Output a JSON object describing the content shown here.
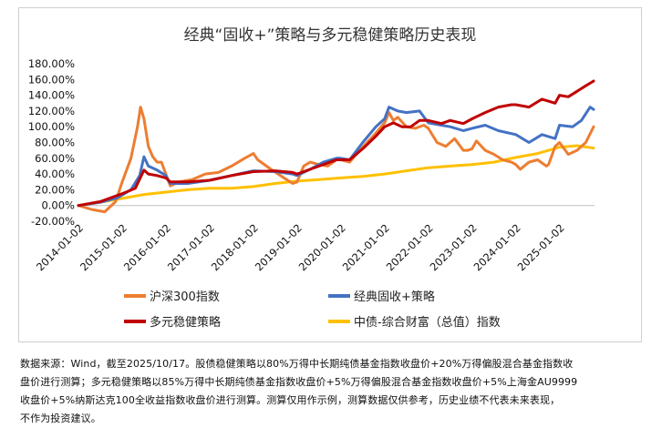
{
  "chart_data": {
    "type": "line",
    "title": "经典“固收+”策略与多元稳健策略历史表现",
    "y_ticks": [
      "180.00%",
      "160.00%",
      "140.00%",
      "120.00%",
      "100.00%",
      "80.00%",
      "60.00%",
      "40.00%",
      "20.00%",
      "0.00%",
      "-20.00%"
    ],
    "ylim": [
      -20,
      180
    ],
    "x_ticks": [
      "2014-01-02",
      "2015-01-02",
      "2016-01-02",
      "2017-01-02",
      "2018-01-02",
      "2019-01-02",
      "2020-01-02",
      "2021-01-02",
      "2022-01-02",
      "2023-01-02",
      "2024-01-02",
      "2025-01-02"
    ],
    "xlim": [
      2014.0,
      2025.8
    ],
    "legend": "bottom",
    "series": [
      {
        "name": "沪深300指数",
        "color": "#ED7D31",
        "x": [
          2014.0,
          2014.3,
          2014.6,
          2014.85,
          2015.0,
          2015.2,
          2015.35,
          2015.42,
          2015.5,
          2015.6,
          2015.7,
          2015.8,
          2015.9,
          2016.0,
          2016.1,
          2016.3,
          2016.6,
          2016.9,
          2017.2,
          2017.5,
          2017.8,
          2018.0,
          2018.1,
          2018.4,
          2018.7,
          2018.9,
          2019.0,
          2019.15,
          2019.3,
          2019.5,
          2019.7,
          2019.9,
          2020.0,
          2020.2,
          2020.4,
          2020.6,
          2020.8,
          2021.0,
          2021.1,
          2021.2,
          2021.3,
          2021.5,
          2021.7,
          2021.9,
          2022.0,
          2022.2,
          2022.4,
          2022.6,
          2022.8,
          2022.9,
          2023.0,
          2023.1,
          2023.3,
          2023.5,
          2023.7,
          2023.9,
          2024.0,
          2024.1,
          2024.3,
          2024.5,
          2024.7,
          2024.75,
          2024.9,
          2025.0,
          2025.2,
          2025.4,
          2025.6,
          2025.78
        ],
        "values": [
          0,
          -5,
          -8,
          5,
          30,
          60,
          100,
          125,
          110,
          75,
          62,
          55,
          55,
          40,
          25,
          30,
          33,
          40,
          42,
          50,
          60,
          66,
          58,
          46,
          35,
          28,
          30,
          50,
          55,
          52,
          50,
          58,
          58,
          55,
          68,
          80,
          92,
          105,
          118,
          108,
          112,
          100,
          98,
          102,
          98,
          80,
          75,
          85,
          70,
          70,
          72,
          82,
          70,
          65,
          58,
          55,
          52,
          46,
          55,
          58,
          50,
          52,
          75,
          80,
          65,
          70,
          80,
          100
        ]
      },
      {
        "name": "经典固收+策略",
        "color": "#4472C4",
        "x": [
          2014.0,
          2014.5,
          2014.9,
          2015.2,
          2015.4,
          2015.5,
          2015.6,
          2015.8,
          2016.0,
          2016.1,
          2016.5,
          2017.0,
          2017.5,
          2018.0,
          2018.5,
          2018.9,
          2019.0,
          2019.3,
          2019.6,
          2019.9,
          2020.0,
          2020.2,
          2020.5,
          2020.8,
          2021.0,
          2021.1,
          2021.3,
          2021.5,
          2021.8,
          2022.0,
          2022.3,
          2022.5,
          2022.8,
          2023.0,
          2023.3,
          2023.6,
          2024.0,
          2024.3,
          2024.6,
          2024.9,
          2025.0,
          2025.3,
          2025.5,
          2025.7,
          2025.78
        ],
        "values": [
          0,
          4,
          10,
          20,
          38,
          62,
          50,
          45,
          38,
          28,
          28,
          32,
          38,
          44,
          43,
          40,
          38,
          46,
          55,
          60,
          60,
          58,
          80,
          100,
          110,
          125,
          120,
          118,
          120,
          105,
          102,
          100,
          95,
          98,
          102,
          95,
          90,
          80,
          90,
          85,
          102,
          100,
          108,
          125,
          122
        ]
      },
      {
        "name": "多元稳健策略",
        "color": "#C00000",
        "x": [
          2014.0,
          2014.5,
          2015.0,
          2015.3,
          2015.5,
          2015.6,
          2015.8,
          2016.0,
          2016.1,
          2016.5,
          2017.0,
          2017.5,
          2018.0,
          2018.5,
          2018.9,
          2019.0,
          2019.3,
          2019.6,
          2019.9,
          2020.0,
          2020.2,
          2020.5,
          2020.8,
          2021.0,
          2021.2,
          2021.4,
          2021.6,
          2021.8,
          2022.0,
          2022.3,
          2022.5,
          2022.8,
          2023.0,
          2023.3,
          2023.6,
          2023.9,
          2024.0,
          2024.3,
          2024.6,
          2024.9,
          2025.0,
          2025.2,
          2025.4,
          2025.6,
          2025.78
        ],
        "values": [
          0,
          5,
          15,
          22,
          45,
          40,
          38,
          35,
          30,
          30,
          32,
          38,
          43,
          44,
          42,
          40,
          46,
          52,
          58,
          58,
          58,
          72,
          88,
          100,
          105,
          100,
          100,
          108,
          108,
          104,
          108,
          104,
          110,
          118,
          125,
          128,
          128,
          125,
          135,
          130,
          140,
          138,
          145,
          152,
          158
        ]
      },
      {
        "name": "中债-综合财富（总值）指数",
        "color": "#FFC000",
        "x": [
          2014.0,
          2014.5,
          2015.0,
          2015.5,
          2016.0,
          2016.5,
          2017.0,
          2017.5,
          2018.0,
          2018.5,
          2019.0,
          2019.5,
          2020.0,
          2020.5,
          2021.0,
          2021.5,
          2022.0,
          2022.5,
          2023.0,
          2023.5,
          2024.0,
          2024.5,
          2025.0,
          2025.4,
          2025.78
        ],
        "values": [
          0,
          4,
          9,
          14,
          17,
          20,
          22,
          22,
          24,
          28,
          31,
          33,
          35,
          37,
          40,
          44,
          48,
          50,
          52,
          55,
          61,
          66,
          74,
          76,
          73
        ]
      }
    ]
  },
  "footnote": {
    "line1": "数据来源：Wind，截至2025/10/17。股债稳健策略以80%万得中长期纯债基金指数收盘价+20%万得偏股混合基金指数收",
    "line2": "盘价进行测算；多元稳健策略以85%万得中长期纯债基金指数收盘价+5%万得偏股混合基金指数收盘价+5%上海金AU9999",
    "line3": "收盘价+5%纳斯达克100全收益指数收盘价进行测算。测算仅用作示例，测算数据仅供参考，历史业绩不代表未来表现，",
    "line4": "不作为投资建议。"
  }
}
